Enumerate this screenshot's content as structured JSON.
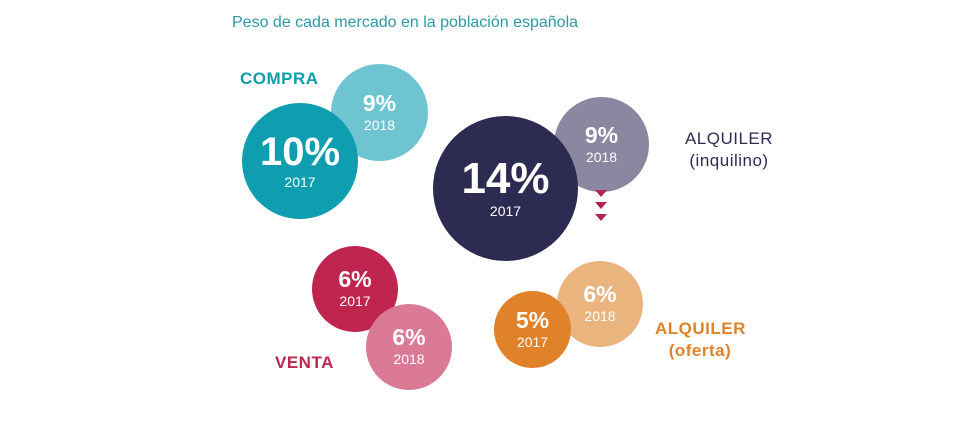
{
  "title": "Peso de cada mercado en la población española",
  "colors": {
    "title": "#2a9aa6",
    "compra_2017": "#0f9db0",
    "compra_2018": "#6ec5d1",
    "alquiler_inq_2017": "#2d2b52",
    "alquiler_inq_2018": "#8a87a1",
    "venta_2017": "#c0254f",
    "venta_2018": "#db7a96",
    "alquiler_of_2017": "#e0822a",
    "alquiler_of_2018": "#eab47f",
    "arrow": "#b0264f"
  },
  "chart_data": {
    "type": "bubble",
    "title": "Peso de cada mercado en la población española",
    "unit": "%",
    "groups": [
      {
        "name": "COMPRA",
        "points": [
          {
            "year": "2017",
            "value": 10,
            "label": "10%"
          },
          {
            "year": "2018",
            "value": 9,
            "label": "9%"
          }
        ]
      },
      {
        "name": "ALQUILER (inquilino)",
        "name_lines": [
          "ALQUILER",
          "(inquilino)"
        ],
        "points": [
          {
            "year": "2017",
            "value": 14,
            "label": "14%"
          },
          {
            "year": "2018",
            "value": 9,
            "label": "9%"
          }
        ]
      },
      {
        "name": "VENTA",
        "points": [
          {
            "year": "2017",
            "value": 6,
            "label": "6%"
          },
          {
            "year": "2018",
            "value": 6,
            "label": "6%"
          }
        ]
      },
      {
        "name": "ALQUILER (oferta)",
        "name_lines": [
          "ALQUILER",
          "(oferta)"
        ],
        "points": [
          {
            "year": "2017",
            "value": 5,
            "label": "5%"
          },
          {
            "year": "2018",
            "value": 6,
            "label": "6%"
          }
        ]
      }
    ],
    "annotations": [
      {
        "type": "down-arrows",
        "group": "ALQUILER (inquilino)",
        "count": 3
      }
    ]
  }
}
